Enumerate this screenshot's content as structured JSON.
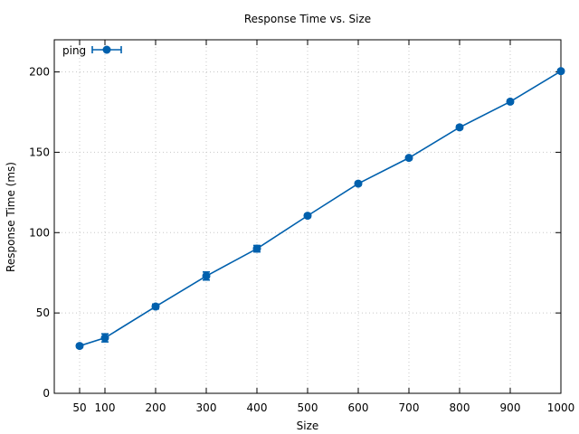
{
  "chart_data": {
    "type": "line",
    "title": "Response Time vs. Size",
    "xlabel": "Size",
    "ylabel": "Response Time (ms)",
    "xlim": [
      0,
      1000
    ],
    "ylim": [
      0,
      220
    ],
    "x_ticks": [
      50,
      100,
      200,
      300,
      400,
      500,
      600,
      700,
      800,
      900,
      1000
    ],
    "y_ticks": [
      0,
      50,
      100,
      150,
      200
    ],
    "grid": true,
    "legend_position": "top-left",
    "series": [
      {
        "name": "ping",
        "color": "#0060ad",
        "marker": "circle",
        "error_bars": true,
        "points": [
          {
            "x": 50,
            "y": 29.5,
            "err": 1.0
          },
          {
            "x": 100,
            "y": 34.5,
            "err": 2.5
          },
          {
            "x": 200,
            "y": 54,
            "err": 1.5
          },
          {
            "x": 300,
            "y": 73,
            "err": 2.5
          },
          {
            "x": 400,
            "y": 90,
            "err": 2.0
          },
          {
            "x": 500,
            "y": 110.5,
            "err": 1.0
          },
          {
            "x": 600,
            "y": 130.5,
            "err": 1.0
          },
          {
            "x": 700,
            "y": 146.5,
            "err": 1.0
          },
          {
            "x": 800,
            "y": 165.5,
            "err": 1.0
          },
          {
            "x": 900,
            "y": 181.5,
            "err": 1.0
          },
          {
            "x": 1000,
            "y": 200.5,
            "err": 1.0
          }
        ]
      }
    ]
  }
}
